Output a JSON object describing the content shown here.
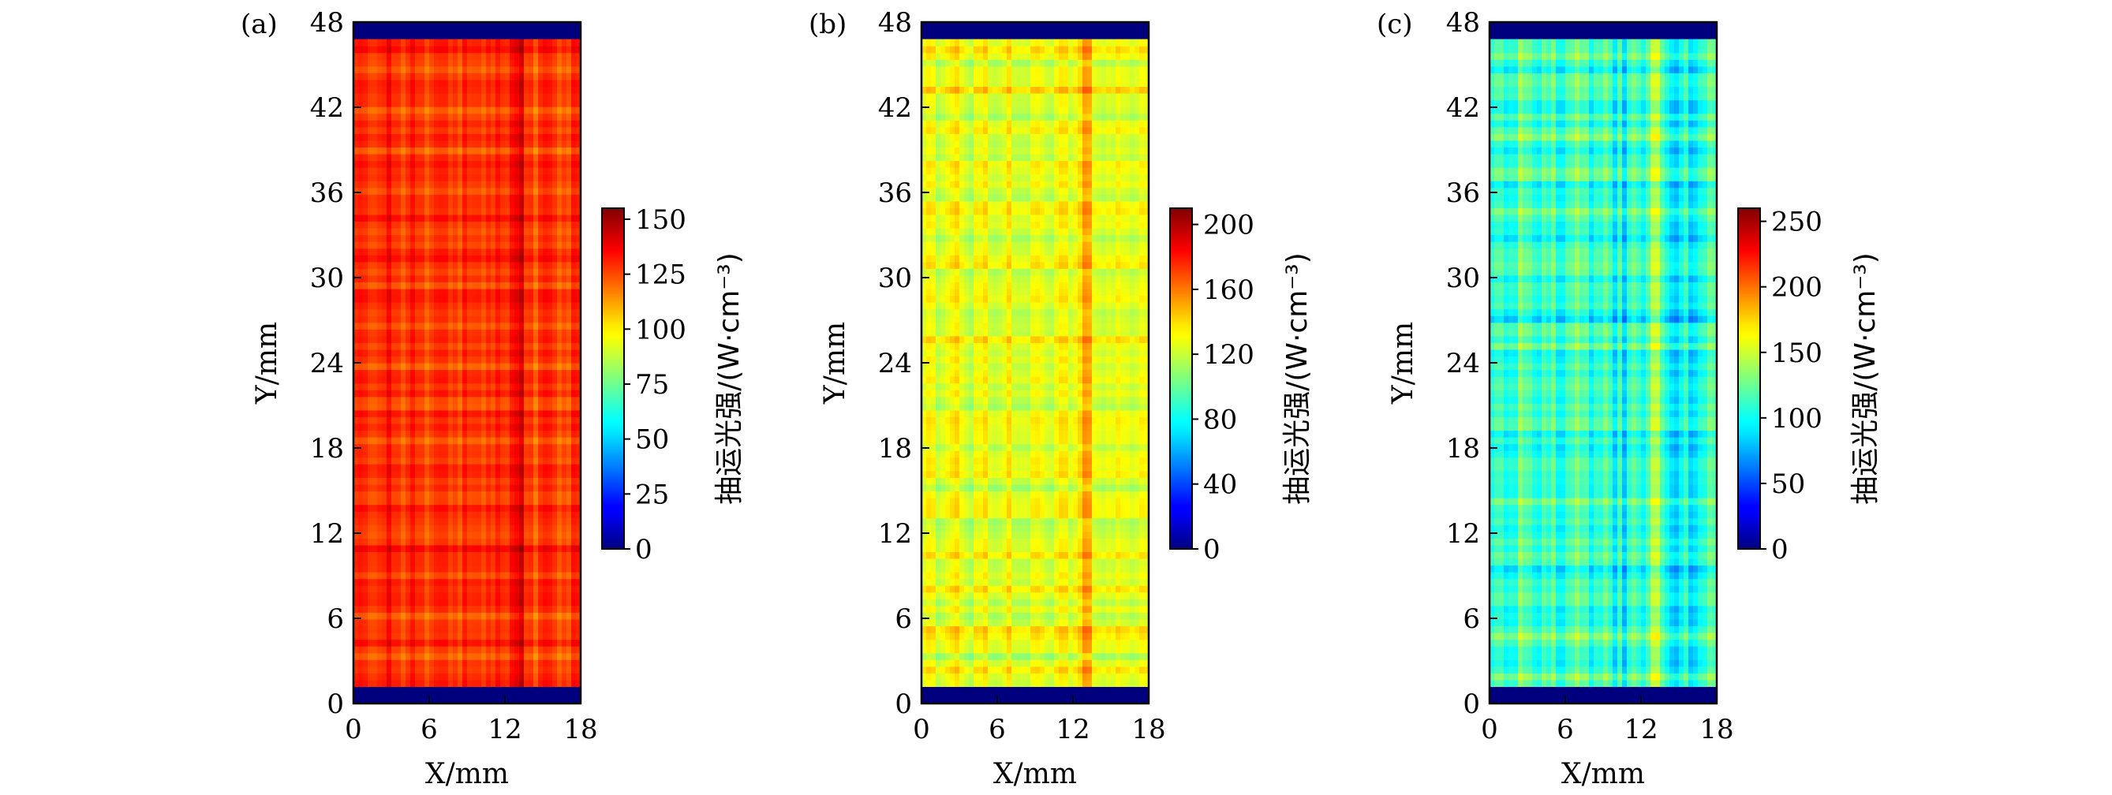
{
  "chart_data": [
    {
      "type": "heatmap",
      "panel_label": "(a)",
      "xlabel": "X/mm",
      "ylabel": "Y/mm",
      "xlim": [
        0,
        18
      ],
      "ylim": [
        0,
        48
      ],
      "xticks": [
        "0",
        "6",
        "12",
        "18"
      ],
      "yticks": [
        "0",
        "6",
        "12",
        "18",
        "24",
        "30",
        "36",
        "42",
        "48"
      ],
      "pumped_region_y": [
        1.2,
        46.8
      ],
      "mean_value": 128,
      "stripe_amplitude": 12,
      "colorbar": {
        "label": "抽运光强/(W·cm⁻³)",
        "range": [
          0,
          155
        ],
        "ticks": [
          "0",
          "25",
          "50",
          "75",
          "100",
          "125",
          "150"
        ],
        "tick_values": [
          0,
          25,
          50,
          75,
          100,
          125,
          150
        ]
      }
    },
    {
      "type": "heatmap",
      "panel_label": "(b)",
      "xlabel": "X/mm",
      "ylabel": "Y/mm",
      "xlim": [
        0,
        18
      ],
      "ylim": [
        0,
        48
      ],
      "xticks": [
        "0",
        "6",
        "12",
        "18"
      ],
      "yticks": [
        "0",
        "6",
        "12",
        "18",
        "24",
        "30",
        "36",
        "42",
        "48"
      ],
      "pumped_region_y": [
        1.2,
        46.8
      ],
      "mean_value": 125,
      "stripe_amplitude": 22,
      "colorbar": {
        "label": "抽运光强/(W·cm⁻³)",
        "range": [
          0,
          210
        ],
        "ticks": [
          "0",
          "40",
          "80",
          "120",
          "160",
          "200"
        ],
        "tick_values": [
          0,
          40,
          80,
          120,
          160,
          200
        ]
      }
    },
    {
      "type": "heatmap",
      "panel_label": "(c)",
      "xlabel": "X/mm",
      "ylabel": "Y/mm",
      "xlim": [
        0,
        18
      ],
      "ylim": [
        0,
        48
      ],
      "xticks": [
        "0",
        "6",
        "12",
        "18"
      ],
      "yticks": [
        "0",
        "6",
        "12",
        "18",
        "24",
        "30",
        "36",
        "42",
        "48"
      ],
      "pumped_region_y": [
        1.2,
        46.8
      ],
      "mean_value": 112,
      "stripe_amplitude": 35,
      "colorbar": {
        "label": "抽运光强/(W·cm⁻³)",
        "range": [
          0,
          260
        ],
        "ticks": [
          "0",
          "50",
          "100",
          "150",
          "200",
          "250"
        ],
        "tick_values": [
          0,
          50,
          100,
          150,
          200,
          250
        ]
      }
    }
  ],
  "colors": {
    "colormap": "jet",
    "outside_region": "#00007f"
  }
}
